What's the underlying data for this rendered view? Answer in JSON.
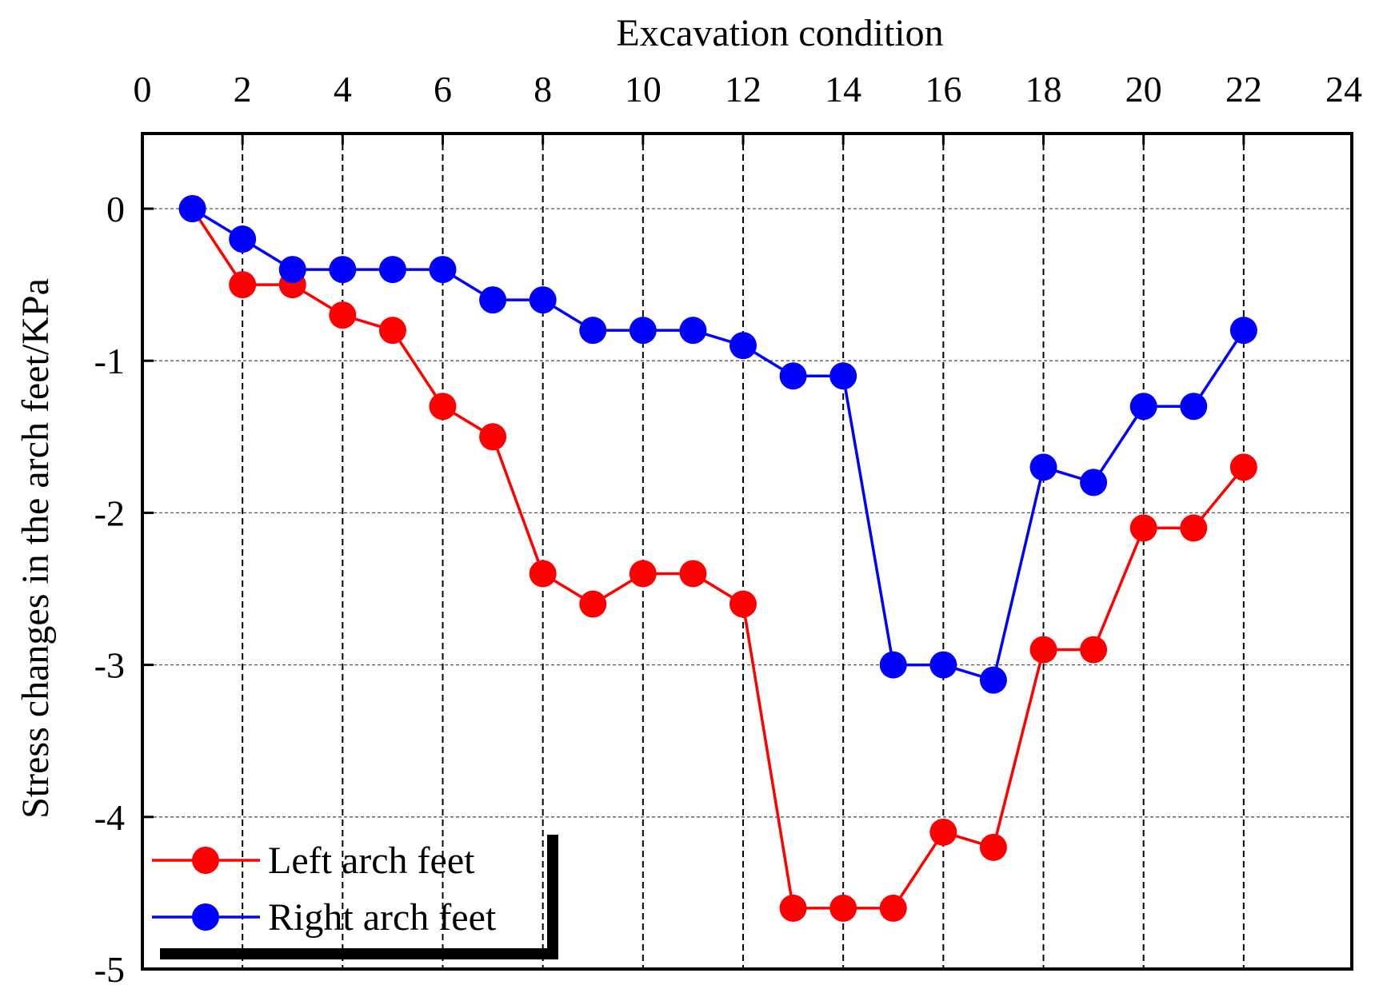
{
  "chart_data": {
    "type": "line",
    "title": "",
    "xlabel": "Excavation condition",
    "ylabel": "Stress changes in the arch feet/KPa",
    "xlim": [
      0,
      24
    ],
    "ylim": [
      -5,
      0.5
    ],
    "x_ticks": [
      "0",
      "2",
      "4",
      "6",
      "8",
      "10",
      "12",
      "14",
      "16",
      "18",
      "20",
      "22",
      "24"
    ],
    "y_ticks": [
      "0",
      "-1",
      "-2",
      "-3",
      "-4",
      "-5"
    ],
    "x_axis_position": "top",
    "grid": true,
    "legend_position": "bottom-left",
    "x": [
      1,
      2,
      3,
      4,
      5,
      6,
      7,
      8,
      9,
      10,
      11,
      12,
      13,
      14,
      15,
      16,
      17,
      18,
      19,
      20,
      21,
      22
    ],
    "series": [
      {
        "name": "Left arch feet",
        "color": "#ff0000",
        "values": [
          0,
          -0.5,
          -0.5,
          -0.7,
          -0.8,
          -1.3,
          -1.5,
          -2.4,
          -2.6,
          -2.4,
          -2.4,
          -2.6,
          -4.6,
          -4.6,
          -4.6,
          -4.1,
          -4.2,
          -2.9,
          -2.9,
          -2.1,
          -2.1,
          -1.7
        ]
      },
      {
        "name": "Right arch feet",
        "color": "#0000ff",
        "values": [
          0,
          -0.2,
          -0.4,
          -0.4,
          -0.4,
          -0.4,
          -0.6,
          -0.6,
          -0.8,
          -0.8,
          -0.8,
          -0.9,
          -1.1,
          -1.1,
          -3.0,
          -3.0,
          -3.1,
          -1.7,
          -1.8,
          -1.3,
          -1.3,
          -0.8
        ]
      }
    ]
  }
}
